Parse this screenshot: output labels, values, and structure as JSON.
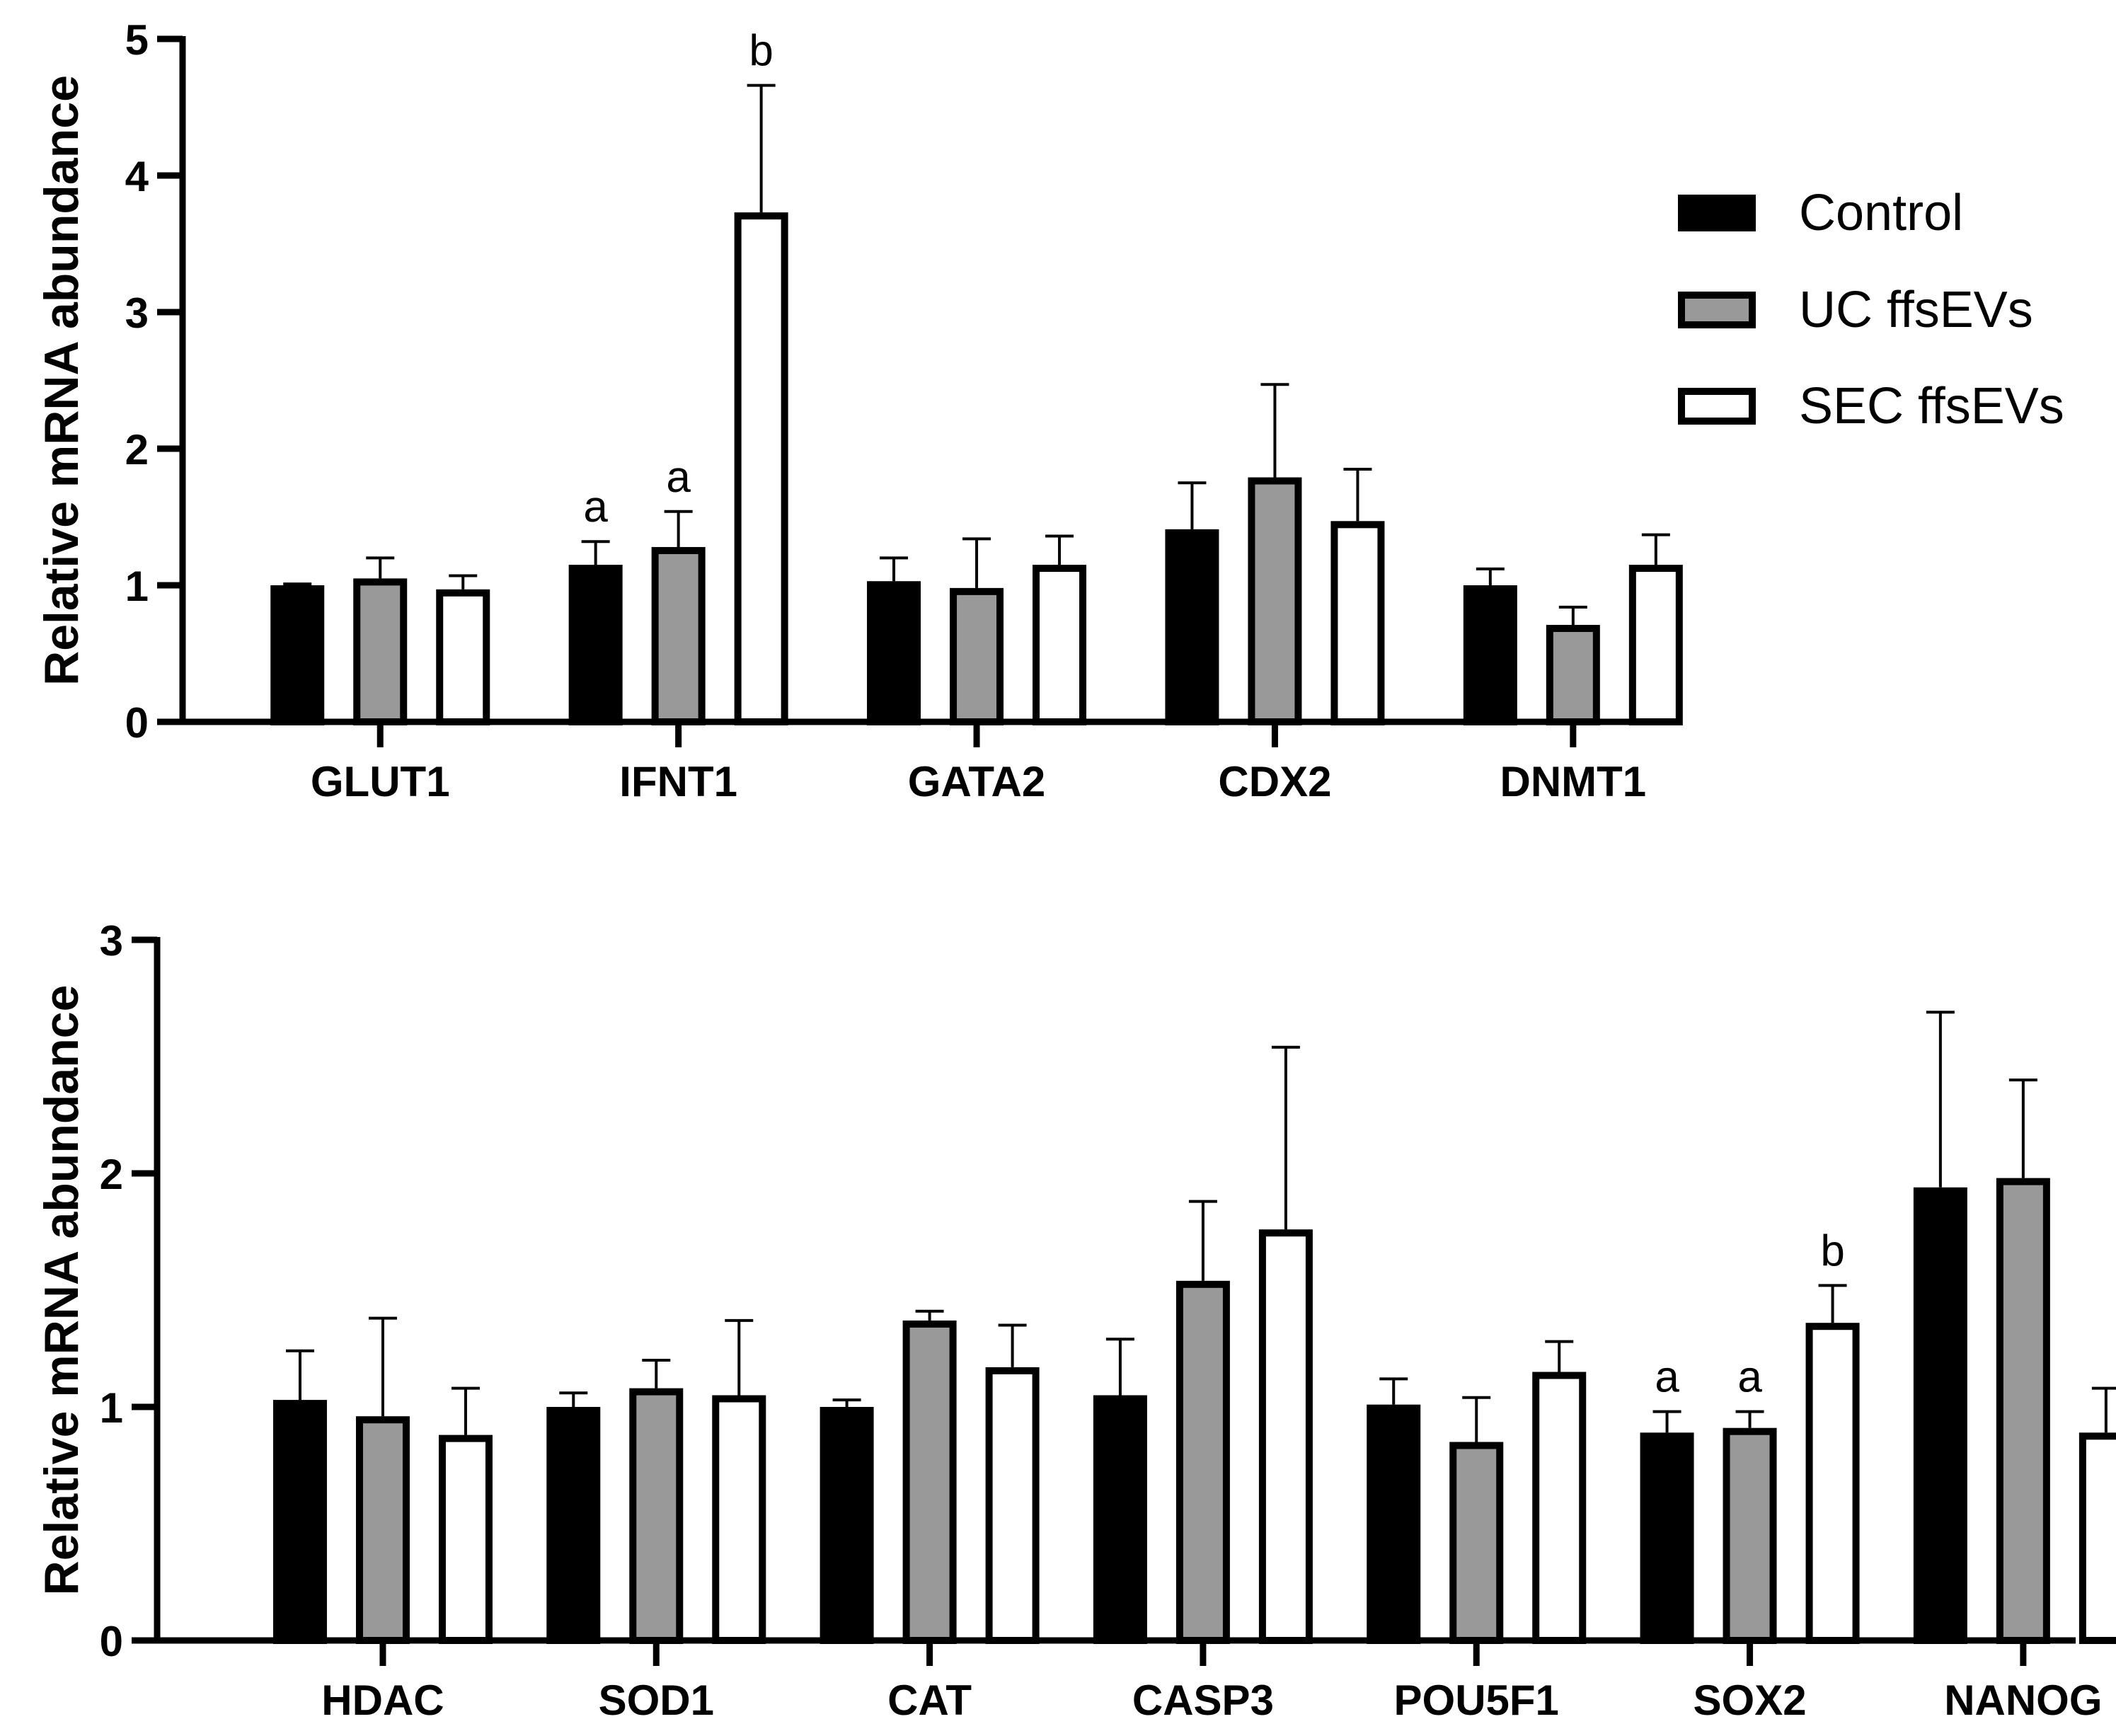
{
  "legend": [
    {
      "name": "Control",
      "fill": "#000000"
    },
    {
      "name": "UC ffsEVs",
      "fill": "#999999"
    },
    {
      "name": "SEC ffsEVs",
      "fill": "#ffffff"
    }
  ],
  "chart_data": [
    {
      "type": "bar",
      "title": "",
      "xlabel": "",
      "ylabel": "Relative mRNA abundance",
      "ylim": [
        0,
        5
      ],
      "yticks": [
        0,
        1,
        2,
        3,
        4,
        5
      ],
      "categories": [
        "GLUT1",
        "IFNT1",
        "GATA2",
        "CDX2",
        "DNMT1"
      ],
      "series": [
        {
          "name": "Control",
          "values": [
            1.0,
            1.15,
            1.03,
            1.41,
            1.0
          ],
          "errors": [
            0.01,
            0.17,
            0.17,
            0.34,
            0.12
          ],
          "labels": [
            "",
            "a",
            "",
            "",
            ""
          ]
        },
        {
          "name": "UC ffsEVs",
          "values": [
            1.05,
            1.28,
            0.98,
            1.79,
            0.71
          ],
          "errors": [
            0.15,
            0.26,
            0.36,
            0.68,
            0.13
          ],
          "labels": [
            "",
            "a",
            "",
            "",
            ""
          ]
        },
        {
          "name": "SEC ffsEVs",
          "values": [
            0.97,
            3.73,
            1.15,
            1.47,
            1.15
          ],
          "errors": [
            0.1,
            0.93,
            0.21,
            0.38,
            0.22
          ],
          "labels": [
            "",
            "b",
            "",
            "",
            ""
          ]
        }
      ]
    },
    {
      "type": "bar",
      "title": "",
      "xlabel": "",
      "ylabel": "Relative mRNA abundance",
      "ylim": [
        0,
        3
      ],
      "yticks": [
        0,
        1,
        2,
        3
      ],
      "categories": [
        "HDAC",
        "SOD1",
        "CAT",
        "CASP3",
        "POU5F1",
        "SOX2",
        "NANOG"
      ],
      "series": [
        {
          "name": "Control",
          "values": [
            1.03,
            1.0,
            1.0,
            1.05,
            1.01,
            0.89,
            1.94
          ],
          "errors": [
            0.21,
            0.06,
            0.03,
            0.24,
            0.11,
            0.09,
            0.75
          ],
          "labels": [
            "",
            "",
            "",
            "",
            "",
            "a",
            ""
          ]
        },
        {
          "name": "UC ffsEVs",
          "values": [
            0.96,
            1.08,
            1.37,
            1.54,
            0.85,
            0.91,
            1.98
          ],
          "errors": [
            0.42,
            0.12,
            0.04,
            0.34,
            0.19,
            0.07,
            0.42
          ],
          "labels": [
            "",
            "",
            "",
            "",
            "",
            "a",
            ""
          ]
        },
        {
          "name": "SEC ffsEVs",
          "values": [
            0.88,
            1.05,
            1.17,
            1.76,
            1.15,
            1.36,
            0.89
          ],
          "errors": [
            0.2,
            0.32,
            0.18,
            0.78,
            0.13,
            0.16,
            0.19
          ],
          "labels": [
            "",
            "",
            "",
            "",
            "",
            "b",
            ""
          ]
        }
      ]
    }
  ]
}
